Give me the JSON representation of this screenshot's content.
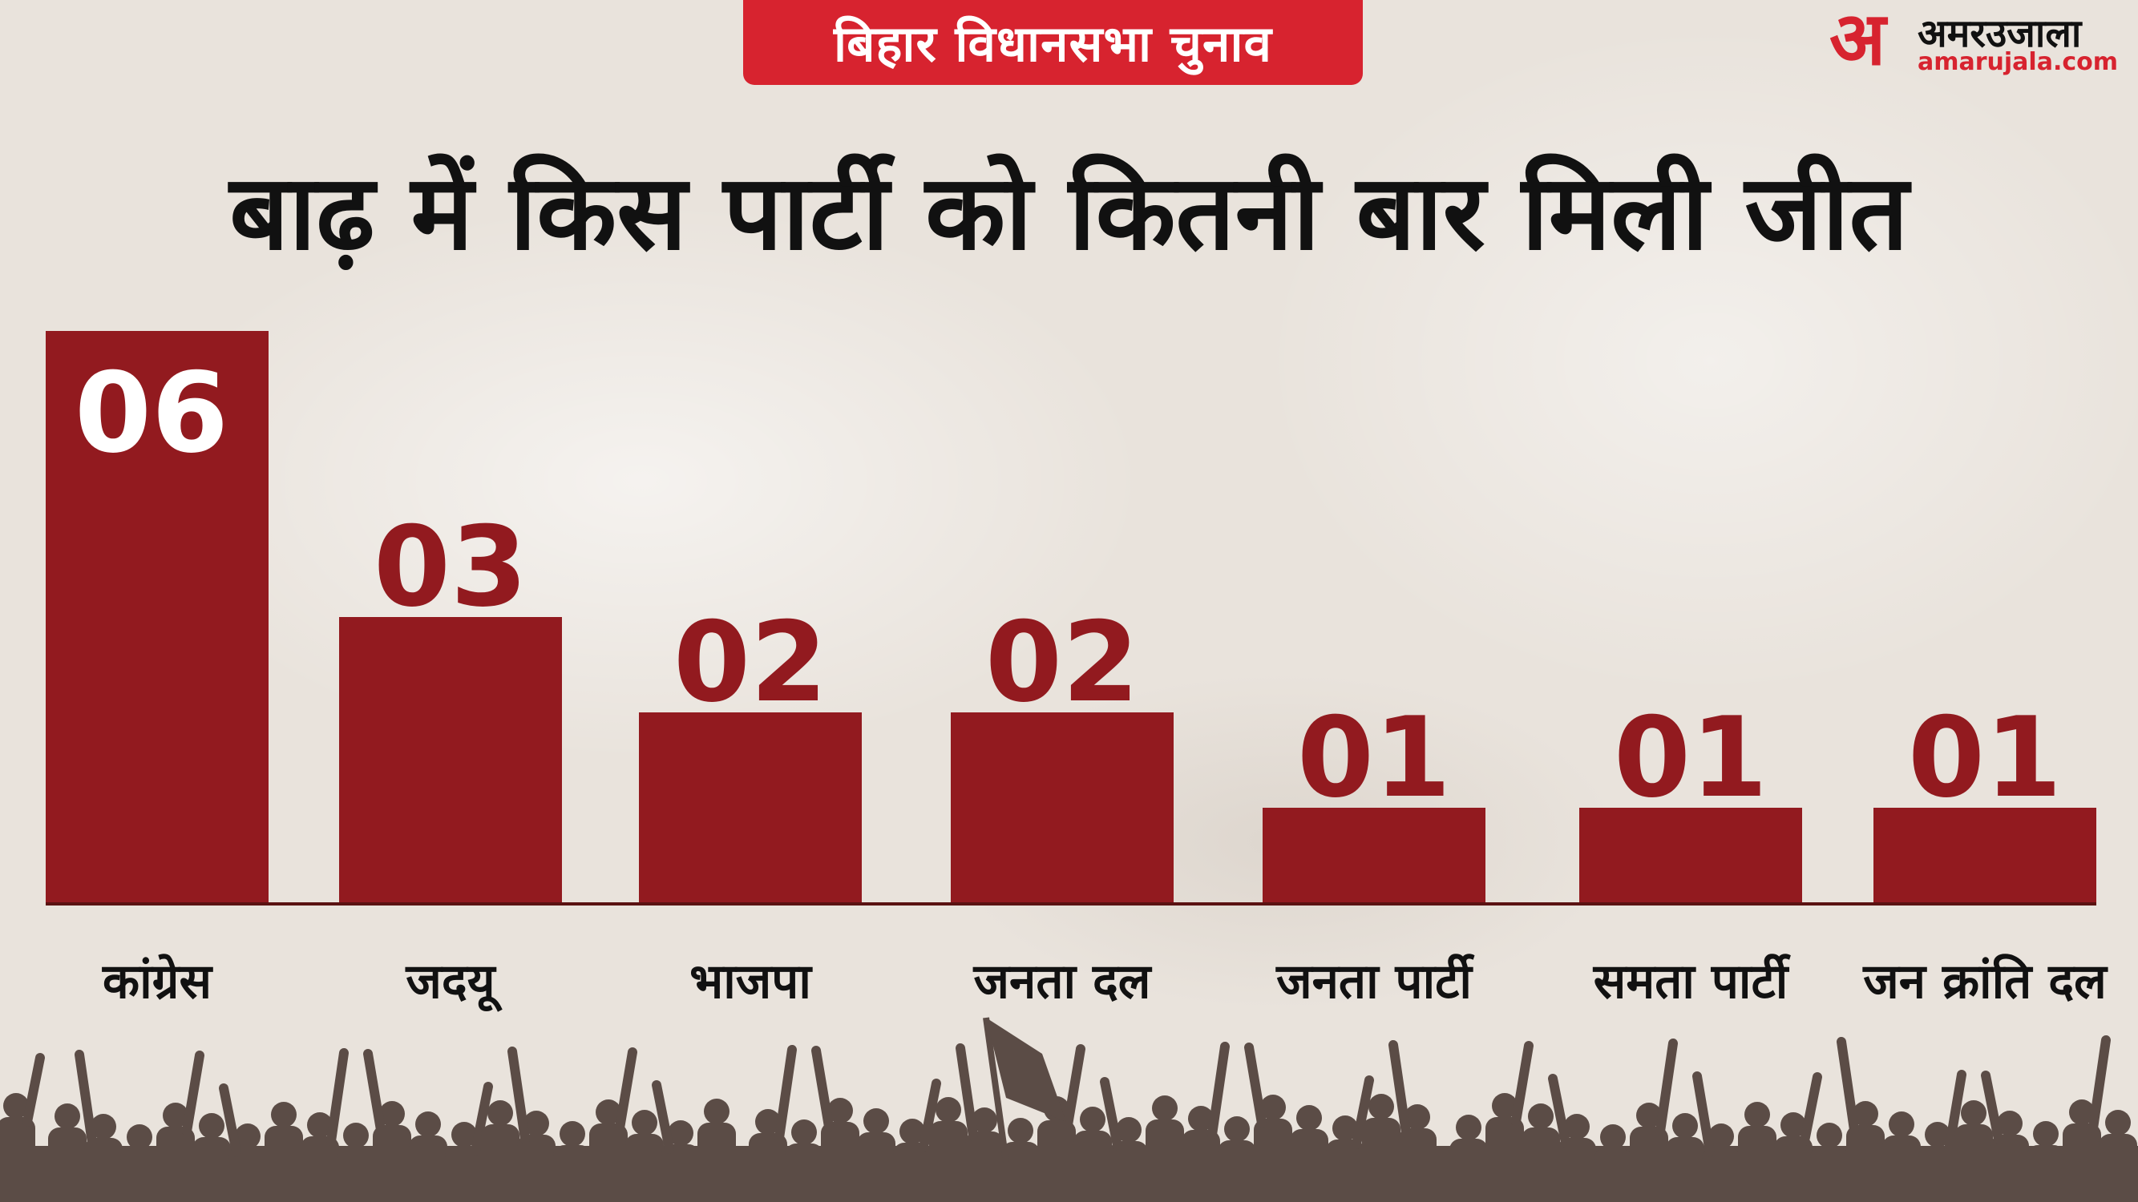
{
  "header": {
    "banner": "बिहार विधानसभा चुनाव",
    "logo_glyph": "अ",
    "logo_name": "अमरउजाला",
    "logo_url": "amarujala.com"
  },
  "headline": "बाढ़ में किस पार्टी को कितनी बार मिली जीत",
  "colors": {
    "bar": "#921a1f",
    "banner": "#d7232f",
    "axis": "#5a1212",
    "crowd": "#5b4c46"
  },
  "chart_data": {
    "type": "bar",
    "categories": [
      "कांग्रेस",
      "जदयू",
      "भाजपा",
      "जनता दल",
      "जनता पार्टी",
      "समता पार्टी",
      "जन क्रांति दल"
    ],
    "values": [
      6,
      3,
      2,
      2,
      1,
      1,
      1
    ],
    "value_labels": [
      "06",
      "03",
      "02",
      "02",
      "01",
      "01",
      "01"
    ],
    "title": "बाढ़ में किस पार्टी को कितनी बार मिली जीत",
    "xlabel": "",
    "ylabel": "",
    "ylim": [
      0,
      6
    ],
    "grid": false,
    "legend": "none"
  }
}
